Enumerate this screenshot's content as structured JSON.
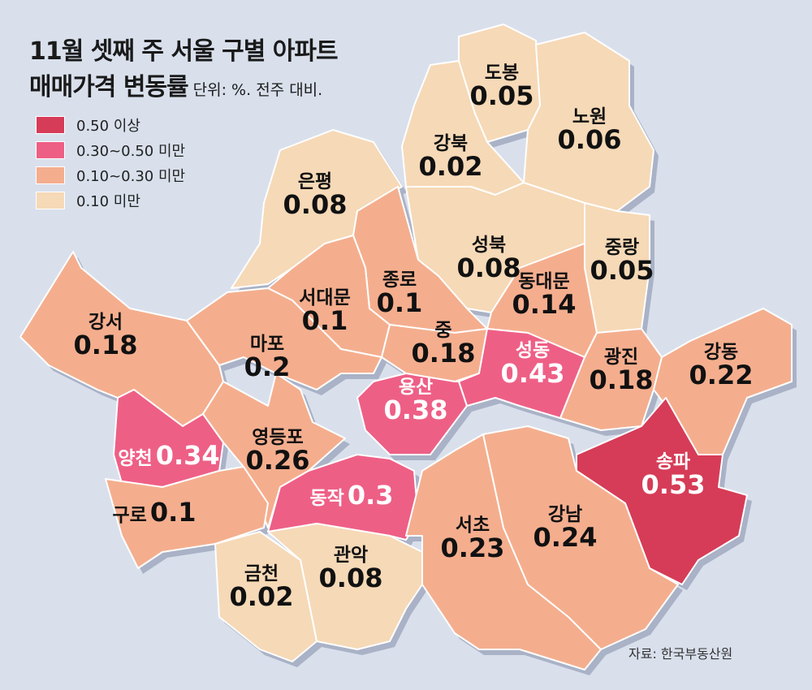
{
  "title_line1": "11월 셋째 주 서울 구별 아파트",
  "title_line2": "매매가격 변동률",
  "unit": "단위: %. 전주 대비.",
  "legend": [
    {
      "label": "0.50 이상",
      "color": "#d63c57"
    },
    {
      "label": "0.30~0.50 미만",
      "color": "#ee5f86"
    },
    {
      "label": "0.10~0.30 미만",
      "color": "#f4ae8e"
    },
    {
      "label": "0.10 미만",
      "color": "#f6d9b7"
    }
  ],
  "source": "자료: 한국부동산원",
  "districts": [
    {
      "name": "도봉",
      "value": "0.05",
      "category": 3
    },
    {
      "name": "노원",
      "value": "0.06",
      "category": 3
    },
    {
      "name": "강북",
      "value": "0.02",
      "category": 3
    },
    {
      "name": "은평",
      "value": "0.08",
      "category": 3
    },
    {
      "name": "성북",
      "value": "0.08",
      "category": 3
    },
    {
      "name": "중랑",
      "value": "0.05",
      "category": 3
    },
    {
      "name": "종로",
      "value": "0.1",
      "category": 2
    },
    {
      "name": "서대문",
      "value": "0.1",
      "category": 2
    },
    {
      "name": "동대문",
      "value": "0.14",
      "category": 2
    },
    {
      "name": "강서",
      "value": "0.18",
      "category": 2
    },
    {
      "name": "마포",
      "value": "0.2",
      "category": 2
    },
    {
      "name": "중",
      "value": "0.18",
      "category": 2
    },
    {
      "name": "성동",
      "value": "0.43",
      "category": 1
    },
    {
      "name": "광진",
      "value": "0.18",
      "category": 2
    },
    {
      "name": "강동",
      "value": "0.22",
      "category": 2
    },
    {
      "name": "용산",
      "value": "0.38",
      "category": 1
    },
    {
      "name": "양천",
      "value": "0.34",
      "category": 1
    },
    {
      "name": "영등포",
      "value": "0.26",
      "category": 2
    },
    {
      "name": "송파",
      "value": "0.53",
      "category": 0
    },
    {
      "name": "동작",
      "value": "0.3",
      "category": 1
    },
    {
      "name": "구로",
      "value": "0.1",
      "category": 2
    },
    {
      "name": "서초",
      "value": "0.23",
      "category": 2
    },
    {
      "name": "강남",
      "value": "0.24",
      "category": 2
    },
    {
      "name": "관악",
      "value": "0.08",
      "category": 3
    },
    {
      "name": "금천",
      "value": "0.02",
      "category": 3
    }
  ]
}
